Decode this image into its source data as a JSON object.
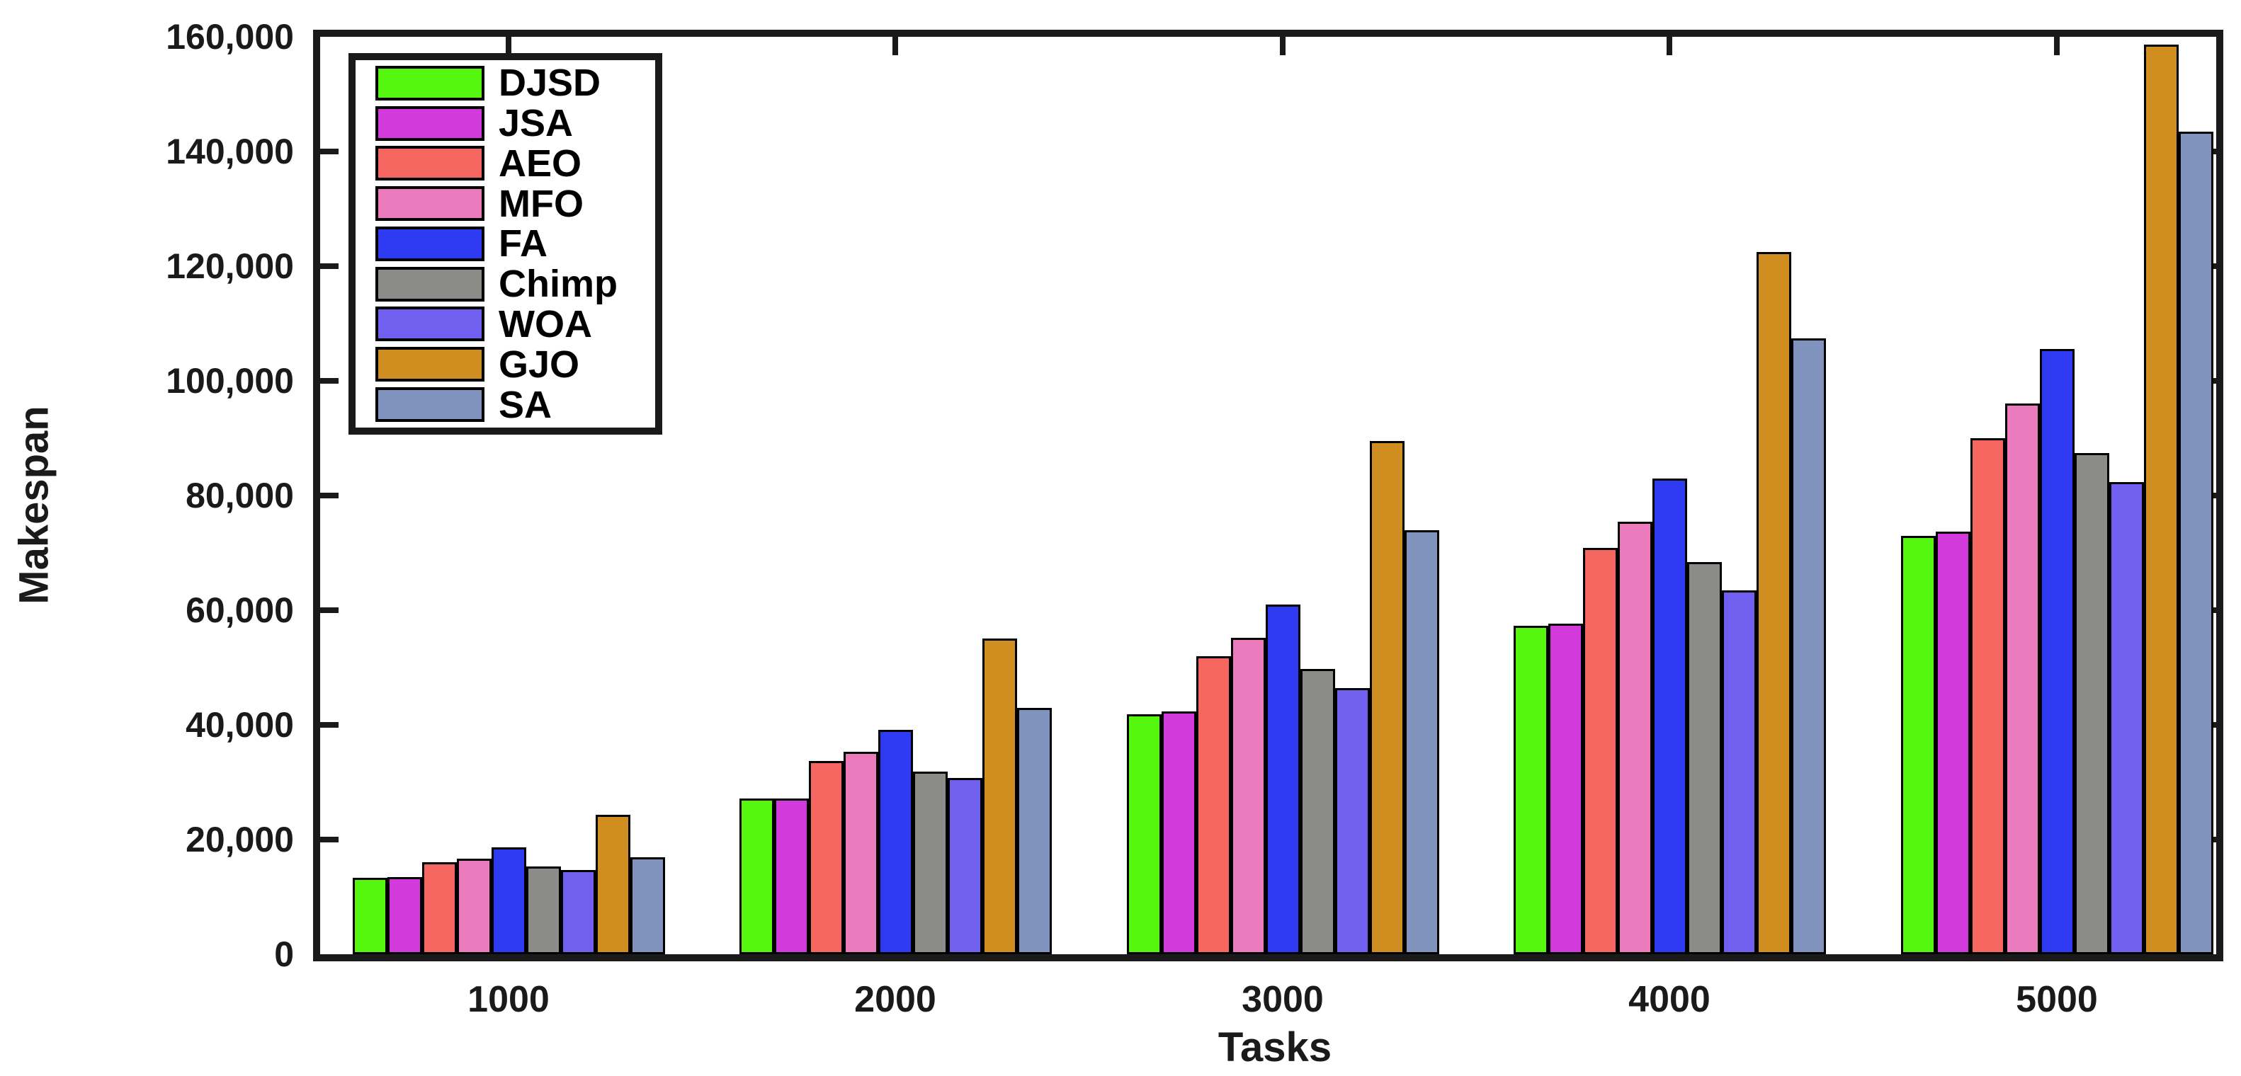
{
  "chart_data": {
    "type": "bar",
    "title": "",
    "xlabel": "Tasks",
    "ylabel": "Makespan",
    "categories": [
      "1000",
      "2000",
      "3000",
      "4000",
      "5000"
    ],
    "ylim": [
      0,
      160000
    ],
    "ytick_step": 20000,
    "ytick_labels": [
      "0",
      "20,000",
      "40,000",
      "60,000",
      "80,000",
      "100,000",
      "120,000",
      "140,000",
      "160,000"
    ],
    "grid": false,
    "legend_position": "top-left-inside",
    "axis_color": "#1a1a1a",
    "bar_outline_color": "#000000",
    "series": [
      {
        "name": "DJSD",
        "color": "#55F70E",
        "values": [
          13300,
          27200,
          41800,
          57300,
          73000
        ]
      },
      {
        "name": "JSA",
        "color": "#D23ADC",
        "values": [
          13400,
          27200,
          42300,
          57600,
          73700
        ]
      },
      {
        "name": "AEO",
        "color": "#F56660",
        "values": [
          16000,
          33700,
          52000,
          70900,
          90000
        ]
      },
      {
        "name": "MFO",
        "color": "#EC7BBE",
        "values": [
          16700,
          35300,
          55200,
          75400,
          96000
        ]
      },
      {
        "name": "FA",
        "color": "#2E3BF2",
        "values": [
          18600,
          39100,
          61000,
          83000,
          105500
        ]
      },
      {
        "name": "Chimp",
        "color": "#8B8B88",
        "values": [
          15300,
          31800,
          49800,
          68400,
          87400
        ]
      },
      {
        "name": "WOA",
        "color": "#7160EF",
        "values": [
          14700,
          30700,
          46400,
          63400,
          82300
        ]
      },
      {
        "name": "GJO",
        "color": "#D18E20",
        "values": [
          24300,
          55100,
          89500,
          122500,
          158600
        ]
      },
      {
        "name": "SA",
        "color": "#8093BF",
        "values": [
          16900,
          43000,
          74000,
          107400,
          143500
        ]
      }
    ]
  }
}
